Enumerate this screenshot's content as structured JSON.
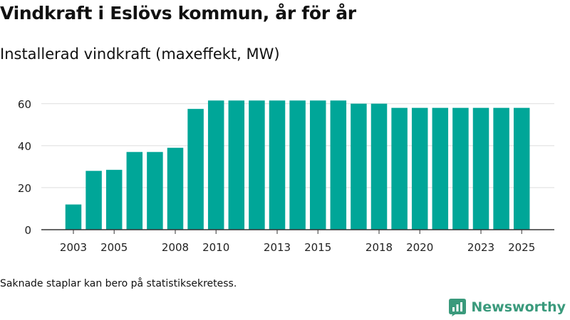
{
  "header": {
    "title": "Vindkraft i Eslövs kommun, år för år",
    "subtitle": "Installerad vindkraft (maxeffekt, MW)"
  },
  "footer": {
    "note": "Saknade staplar kan bero på statistiksekretess.",
    "brand": "Newsworthy"
  },
  "colors": {
    "bar": "#00a698",
    "grid": "#dddddd",
    "axis": "#333333",
    "brand": "#3a9a7c"
  },
  "chart_data": {
    "type": "bar",
    "title": "Vindkraft i Eslövs kommun, år för år",
    "subtitle": "Installerad vindkraft (maxeffekt, MW)",
    "xlabel": "",
    "ylabel": "",
    "ylim": [
      0,
      65
    ],
    "yticks": [
      0,
      20,
      40,
      60
    ],
    "grid": true,
    "categories": [
      "2003",
      "2004",
      "2005",
      "2006",
      "2007",
      "2008",
      "2009",
      "2010",
      "2011",
      "2012",
      "2013",
      "2014",
      "2015",
      "2016",
      "2017",
      "2018",
      "2019",
      "2020",
      "2021",
      "2022",
      "2023",
      "2024",
      "2025"
    ],
    "values": [
      12,
      28,
      28.5,
      37,
      37,
      39,
      57.5,
      61.5,
      61.5,
      61.5,
      61.5,
      61.5,
      61.5,
      61.5,
      60,
      60,
      58,
      58,
      58,
      58,
      58,
      58,
      58
    ],
    "xtick_labels": [
      "2003",
      "2005",
      "2008",
      "2010",
      "2013",
      "2015",
      "2018",
      "2020",
      "2023",
      "2025"
    ]
  }
}
